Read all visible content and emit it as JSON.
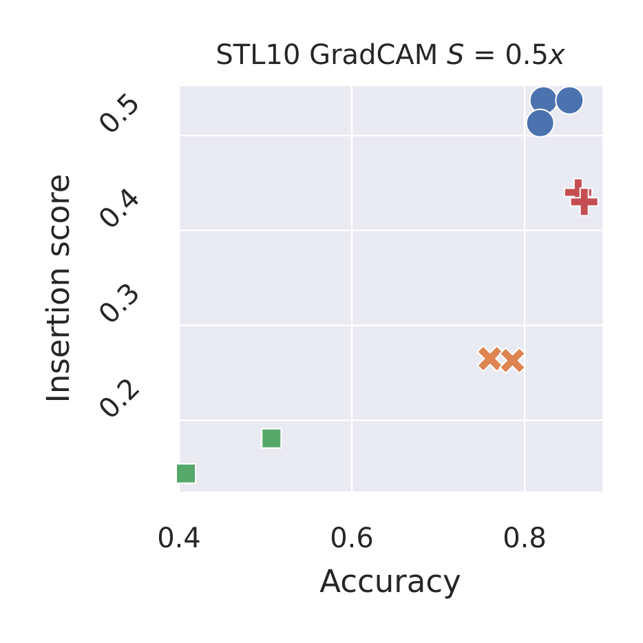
{
  "chart_data": {
    "type": "scatter",
    "title_prefix": "STL10 GradCAM ",
    "title_math": "S",
    "title_suffix": " = 0.5",
    "title_math_var": "x",
    "xlabel": "Accuracy",
    "ylabel": "Insertion score",
    "xlim": [
      0.4,
      0.89
    ],
    "ylim": [
      0.125,
      0.552
    ],
    "xticks": [
      0.4,
      0.6,
      0.8
    ],
    "xtick_labels": [
      "0.4",
      "0.6",
      "0.8"
    ],
    "yticks": [
      0.2,
      0.3,
      0.4,
      0.5
    ],
    "ytick_labels": [
      "0.2",
      "0.3",
      "0.4",
      "0.5"
    ],
    "grid": true,
    "series": [
      {
        "marker": "circle",
        "color": "#4c72b0",
        "points": [
          {
            "x": 0.822,
            "y": 0.537
          },
          {
            "x": 0.852,
            "y": 0.537
          },
          {
            "x": 0.818,
            "y": 0.513
          }
        ]
      },
      {
        "marker": "plus",
        "color": "#c44e52",
        "points": [
          {
            "x": 0.862,
            "y": 0.44
          },
          {
            "x": 0.869,
            "y": 0.43
          }
        ]
      },
      {
        "marker": "x",
        "color": "#dd8452",
        "points": [
          {
            "x": 0.76,
            "y": 0.265
          },
          {
            "x": 0.786,
            "y": 0.263
          }
        ]
      },
      {
        "marker": "square",
        "color": "#55a868",
        "points": [
          {
            "x": 0.507,
            "y": 0.181
          },
          {
            "x": 0.408,
            "y": 0.144
          }
        ]
      }
    ]
  }
}
